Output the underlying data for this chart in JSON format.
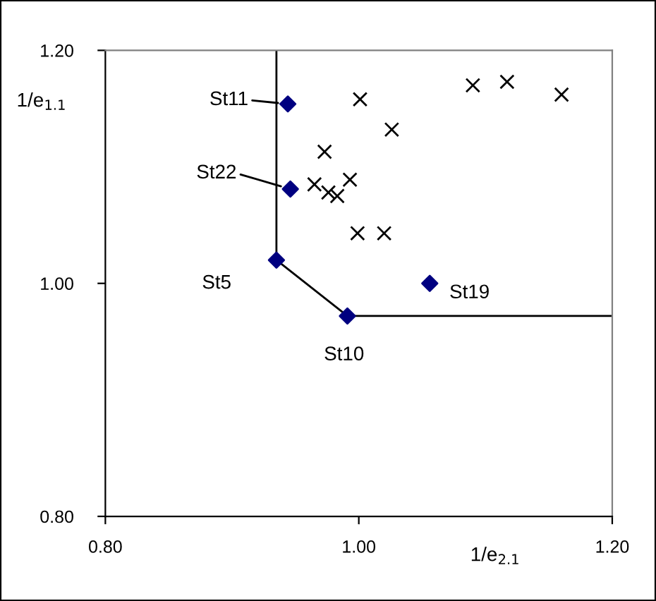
{
  "chart_data": {
    "type": "scatter",
    "xlabel": "1/e$_{2.1}$",
    "ylabel": "1/e$_{1.1}$",
    "xlim": [
      0.8,
      1.2
    ],
    "ylim": [
      0.8,
      1.2
    ],
    "xticks": [
      {
        "value": 0.8,
        "label": "0.80"
      },
      {
        "value": 1.0,
        "label": "1.00"
      },
      {
        "value": 1.2,
        "label": "1.20"
      }
    ],
    "yticks": [
      {
        "value": 0.8,
        "label": "0.80"
      },
      {
        "value": 1.0,
        "label": "1.00"
      },
      {
        "value": 1.2,
        "label": "1.20"
      }
    ],
    "grid": false,
    "legend": false,
    "series": [
      {
        "type": "line",
        "color": "#000000",
        "marker": "none",
        "line_style": "solid",
        "x": [
          0.935,
          0.935,
          0.991,
          1.2
        ],
        "values": [
          1.2,
          1.02,
          0.972,
          0.972
        ]
      },
      {
        "color": "#000000",
        "marker": "cross",
        "x": [
          1.001,
          1.026,
          0.973,
          1.09,
          1.117,
          1.16,
          0.965,
          0.976,
          0.983,
          0.993,
          0.999,
          1.02
        ],
        "values": [
          1.158,
          1.132,
          1.113,
          1.17,
          1.173,
          1.162,
          1.085,
          1.078,
          1.075,
          1.089,
          1.043,
          1.043
        ]
      },
      {
        "color": "#000080",
        "marker": "diamond",
        "x": [
          0.944,
          0.946,
          0.935,
          1.056,
          0.991
        ],
        "values": [
          1.154,
          1.081,
          1.02,
          1.0,
          0.972
        ]
      }
    ],
    "annotations": [
      {
        "text": "St11",
        "x": 0.944,
        "y": 1.154
      },
      {
        "text": "St22",
        "x": 0.946,
        "y": 1.081
      },
      {
        "text": "St5",
        "x": 0.935,
        "y": 1.02
      },
      {
        "text": "St19",
        "x": 1.056,
        "y": 1.0
      },
      {
        "text": "St10",
        "x": 0.991,
        "y": 0.972
      }
    ]
  }
}
